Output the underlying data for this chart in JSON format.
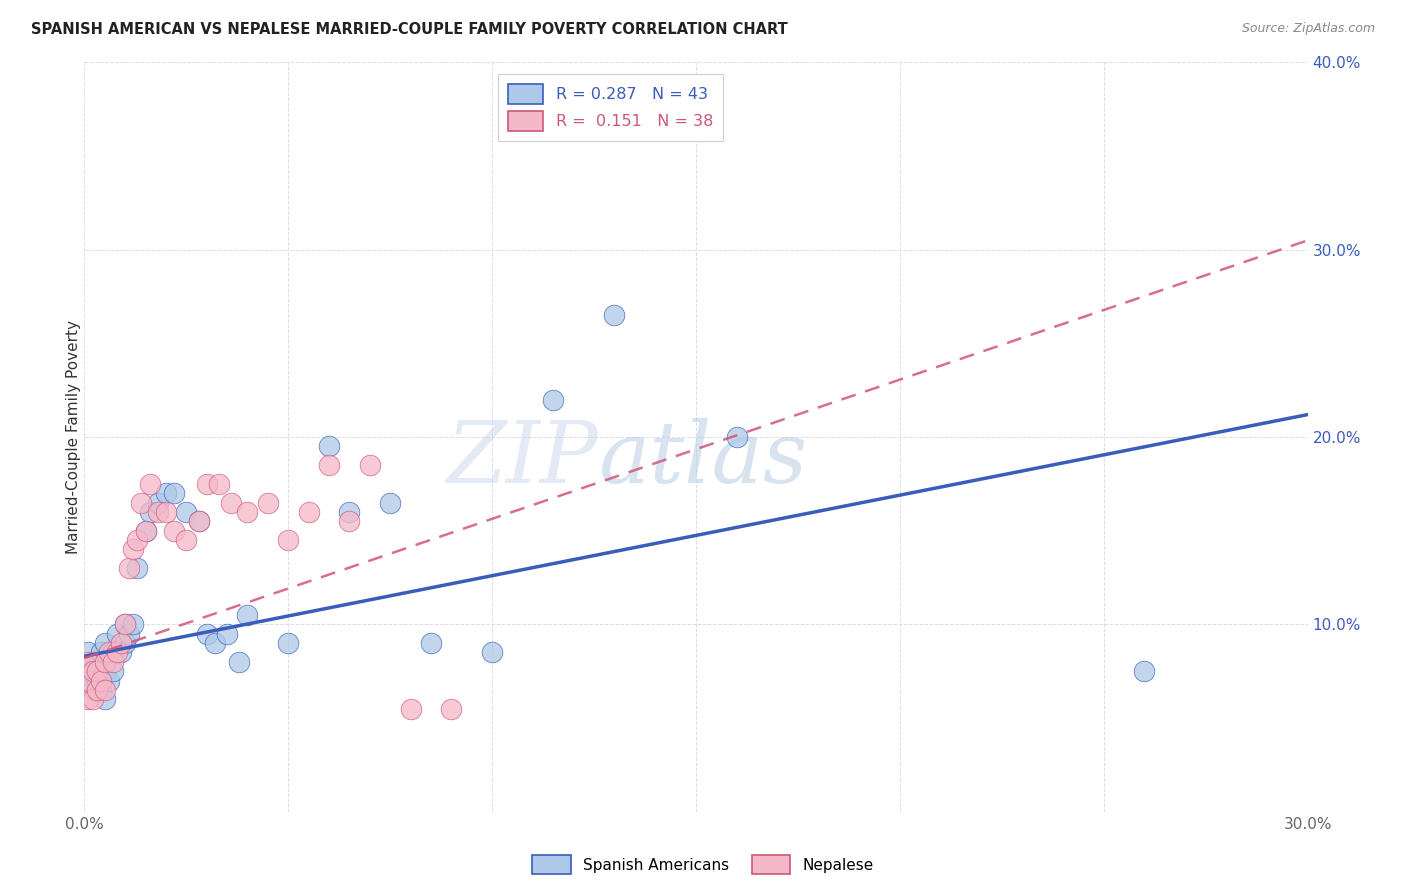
{
  "title": "SPANISH AMERICAN VS NEPALESE MARRIED-COUPLE FAMILY POVERTY CORRELATION CHART",
  "source": "Source: ZipAtlas.com",
  "ylabel": "Married-Couple Family Poverty",
  "xlim": [
    0.0,
    0.3
  ],
  "ylim": [
    0.0,
    0.4
  ],
  "xticks": [
    0.0,
    0.05,
    0.1,
    0.15,
    0.2,
    0.25,
    0.3
  ],
  "yticks": [
    0.0,
    0.1,
    0.2,
    0.3,
    0.4
  ],
  "R_spanish": 0.287,
  "N_spanish": 43,
  "R_nepalese": 0.151,
  "N_nepalese": 38,
  "color_spanish": "#adc8e8",
  "color_nepalese": "#f5b8c8",
  "line_color_spanish": "#3a5dbb",
  "line_color_nepalese": "#d0557a",
  "background_color": "#ffffff",
  "grid_color": "#d8dde8",
  "watermark_zip": "ZIP",
  "watermark_atlas": "atlas",
  "spanish_x": [
    0.001,
    0.001,
    0.002,
    0.002,
    0.003,
    0.003,
    0.004,
    0.004,
    0.005,
    0.005,
    0.005,
    0.006,
    0.007,
    0.007,
    0.008,
    0.009,
    0.01,
    0.01,
    0.011,
    0.012,
    0.013,
    0.015,
    0.016,
    0.018,
    0.02,
    0.022,
    0.025,
    0.028,
    0.03,
    0.032,
    0.035,
    0.038,
    0.04,
    0.05,
    0.06,
    0.065,
    0.075,
    0.085,
    0.1,
    0.115,
    0.13,
    0.16,
    0.26
  ],
  "spanish_y": [
    0.075,
    0.085,
    0.065,
    0.08,
    0.07,
    0.075,
    0.065,
    0.085,
    0.06,
    0.075,
    0.09,
    0.07,
    0.075,
    0.085,
    0.095,
    0.085,
    0.09,
    0.1,
    0.095,
    0.1,
    0.13,
    0.15,
    0.16,
    0.165,
    0.17,
    0.17,
    0.16,
    0.155,
    0.095,
    0.09,
    0.095,
    0.08,
    0.105,
    0.09,
    0.195,
    0.16,
    0.165,
    0.09,
    0.085,
    0.22,
    0.265,
    0.2,
    0.075
  ],
  "nepalese_x": [
    0.001,
    0.001,
    0.001,
    0.002,
    0.002,
    0.003,
    0.003,
    0.004,
    0.005,
    0.005,
    0.006,
    0.007,
    0.008,
    0.009,
    0.01,
    0.011,
    0.012,
    0.013,
    0.014,
    0.015,
    0.016,
    0.018,
    0.02,
    0.022,
    0.025,
    0.028,
    0.03,
    0.033,
    0.036,
    0.04,
    0.045,
    0.05,
    0.055,
    0.06,
    0.065,
    0.07,
    0.08,
    0.09
  ],
  "nepalese_y": [
    0.06,
    0.07,
    0.08,
    0.06,
    0.075,
    0.065,
    0.075,
    0.07,
    0.065,
    0.08,
    0.085,
    0.08,
    0.085,
    0.09,
    0.1,
    0.13,
    0.14,
    0.145,
    0.165,
    0.15,
    0.175,
    0.16,
    0.16,
    0.15,
    0.145,
    0.155,
    0.175,
    0.175,
    0.165,
    0.16,
    0.165,
    0.145,
    0.16,
    0.185,
    0.155,
    0.185,
    0.055,
    0.055
  ],
  "line_spanish_x0": 0.0,
  "line_spanish_y0": 0.083,
  "line_spanish_x1": 0.3,
  "line_spanish_y1": 0.212,
  "line_nepalese_x0": 0.0,
  "line_nepalese_y0": 0.082,
  "line_nepalese_x1": 0.3,
  "line_nepalese_y1": 0.305
}
